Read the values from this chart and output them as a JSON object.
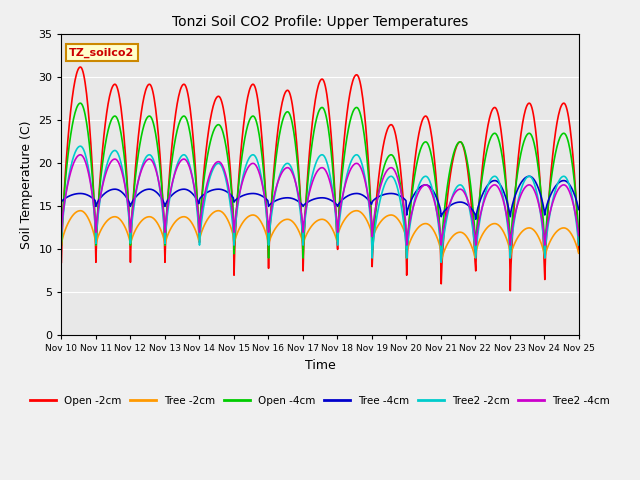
{
  "title": "Tonzi Soil CO2 Profile: Upper Temperatures",
  "xlabel": "Time",
  "ylabel": "Soil Temperature (C)",
  "ylim": [
    0,
    35
  ],
  "legend_label": "TZ_soilco2",
  "x_tick_labels": [
    "Nov 10",
    "Nov 11",
    "Nov 12",
    "Nov 13",
    "Nov 14",
    "Nov 15",
    "Nov 16",
    "Nov 17",
    "Nov 18",
    "Nov 19",
    "Nov 20",
    "Nov 21",
    "Nov 22",
    "Nov 23",
    "Nov 24",
    "Nov 25"
  ],
  "series": {
    "Open -2cm": {
      "color": "#ff0000",
      "lw": 1.2
    },
    "Tree -2cm": {
      "color": "#ff9900",
      "lw": 1.2
    },
    "Open -4cm": {
      "color": "#00cc00",
      "lw": 1.2
    },
    "Tree -4cm": {
      "color": "#0000cc",
      "lw": 1.2
    },
    "Tree2 -2cm": {
      "color": "#00cccc",
      "lw": 1.2
    },
    "Tree2 -4cm": {
      "color": "#cc00cc",
      "lw": 1.2
    }
  },
  "n_days": 15,
  "pts_per_day": 48,
  "red_peaks": [
    31.2,
    29.2,
    29.2,
    29.2,
    27.8,
    29.2,
    28.5,
    29.8,
    30.3,
    24.5,
    25.5,
    22.5,
    26.5,
    27.0,
    27.0
  ],
  "red_mins": [
    8.5,
    8.5,
    8.5,
    8.5,
    10.8,
    7.0,
    7.8,
    7.5,
    10.0,
    8.0,
    7.0,
    6.0,
    7.5,
    5.2,
    6.5
  ],
  "orange_peaks": [
    14.5,
    13.8,
    13.8,
    13.8,
    14.5,
    14.0,
    13.5,
    13.5,
    14.5,
    14.0,
    13.0,
    12.0,
    13.0,
    12.5,
    12.5
  ],
  "orange_mins": [
    10.5,
    10.5,
    10.5,
    10.5,
    11.0,
    10.5,
    10.5,
    10.5,
    11.5,
    11.0,
    9.5,
    8.5,
    9.5,
    9.0,
    9.0
  ],
  "green_peaks": [
    27.0,
    25.5,
    25.5,
    25.5,
    24.5,
    25.5,
    26.0,
    26.5,
    26.5,
    21.0,
    22.5,
    22.5,
    23.5,
    23.5,
    23.5
  ],
  "green_mins": [
    10.5,
    10.5,
    10.5,
    10.5,
    12.0,
    9.5,
    9.0,
    9.0,
    11.0,
    9.5,
    9.0,
    9.5,
    10.0,
    9.5,
    9.5
  ],
  "blue_peaks": [
    16.5,
    17.0,
    17.0,
    17.0,
    17.0,
    16.5,
    16.0,
    16.0,
    16.5,
    16.5,
    17.5,
    15.5,
    18.0,
    18.5,
    18.0
  ],
  "blue_mins": [
    15.5,
    15.0,
    15.0,
    15.0,
    15.8,
    15.5,
    15.0,
    15.0,
    15.0,
    15.5,
    14.0,
    13.8,
    13.5,
    13.8,
    14.0
  ],
  "cyan_peaks": [
    22.0,
    21.5,
    21.0,
    21.0,
    20.0,
    21.0,
    20.0,
    21.0,
    21.0,
    18.5,
    18.5,
    17.5,
    18.5,
    18.5,
    18.5
  ],
  "cyan_mins": [
    11.0,
    10.7,
    10.7,
    10.7,
    10.5,
    10.5,
    10.5,
    10.5,
    10.5,
    9.0,
    9.0,
    8.5,
    9.0,
    9.0,
    9.0
  ],
  "magenta_peaks": [
    21.0,
    20.5,
    20.5,
    20.5,
    20.2,
    20.0,
    19.5,
    19.5,
    20.0,
    19.5,
    17.5,
    17.0,
    17.5,
    17.5,
    17.5
  ],
  "magenta_mins": [
    12.0,
    12.0,
    12.0,
    12.0,
    12.0,
    12.0,
    12.0,
    12.0,
    12.0,
    11.5,
    10.5,
    10.5,
    10.5,
    10.5,
    10.5
  ]
}
